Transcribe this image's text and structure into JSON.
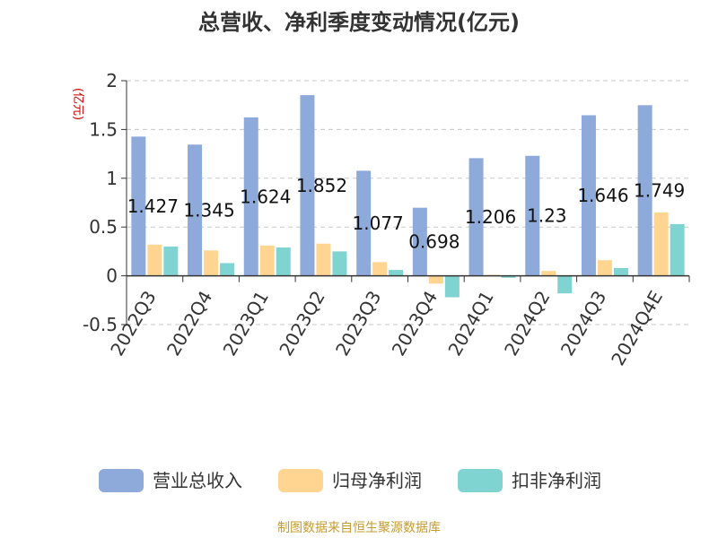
{
  "chart_data": {
    "type": "bar",
    "title": "总营收、净利季度变动情况(亿元)",
    "unit_label": "(亿元)",
    "categories": [
      "2022Q3",
      "2022Q4",
      "2023Q1",
      "2023Q2",
      "2023Q3",
      "2023Q4",
      "2024Q1",
      "2024Q2",
      "2024Q3",
      "2024Q4E"
    ],
    "series": [
      {
        "name": "营业总收入",
        "color": "#8eaadb",
        "values": [
          1.427,
          1.345,
          1.624,
          1.852,
          1.077,
          0.698,
          1.206,
          1.23,
          1.646,
          1.749
        ],
        "labels": [
          "1.427",
          "1.345",
          "1.624",
          "1.852",
          "1.077",
          "0.698",
          "1.206",
          "1.23",
          "1.646",
          "1.749"
        ]
      },
      {
        "name": "归母净利润",
        "color": "#ffd591",
        "values": [
          0.32,
          0.26,
          0.31,
          0.33,
          0.14,
          -0.08,
          0.01,
          0.05,
          0.16,
          0.65
        ]
      },
      {
        "name": "扣非净利润",
        "color": "#7fd3d1",
        "values": [
          0.3,
          0.13,
          0.29,
          0.25,
          0.06,
          -0.22,
          -0.02,
          -0.18,
          0.08,
          0.53
        ]
      }
    ],
    "y_ticks": [
      "2",
      "1.5",
      "1",
      "0.5",
      "0",
      "-0.5"
    ],
    "y_tick_values": [
      2,
      1.5,
      1,
      0.5,
      0,
      -0.5
    ],
    "ylim": [
      -0.5,
      2
    ],
    "grid": true,
    "legend_position": "bottom"
  },
  "source_text": "制图数据来自恒生聚源数据库"
}
